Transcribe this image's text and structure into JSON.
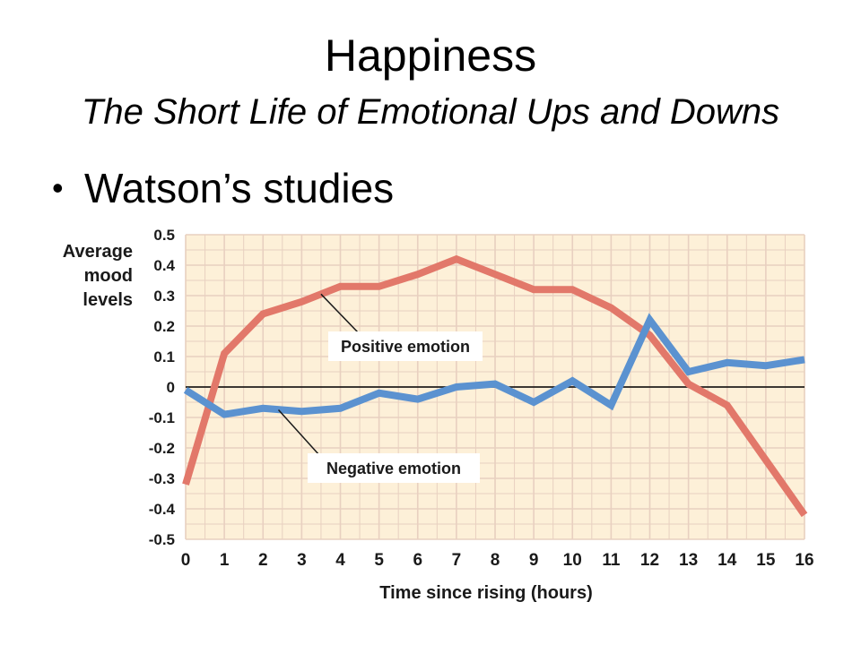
{
  "slide": {
    "title": "Happiness",
    "subtitle": "The Short Life of Emotional Ups and Downs",
    "bullet": "Watson’s studies"
  },
  "chart_data": {
    "type": "line",
    "title": "",
    "xlabel": "Time since rising (hours)",
    "ylabel": [
      "Average",
      "mood",
      "levels"
    ],
    "x": [
      0,
      1,
      2,
      3,
      4,
      5,
      6,
      7,
      8,
      9,
      10,
      11,
      12,
      13,
      14,
      15,
      16
    ],
    "xlim": [
      0,
      16
    ],
    "ylim": [
      -0.5,
      0.5
    ],
    "yticks": [
      0.5,
      0.4,
      0.3,
      0.2,
      0.1,
      0,
      -0.1,
      -0.2,
      -0.3,
      -0.4,
      -0.5
    ],
    "ytick_labels": [
      "0.5",
      "0.4",
      "0.3",
      "0.2",
      "0.1",
      "0",
      "-0.1",
      "-0.2",
      "-0.3",
      "-0.4",
      "-0.5"
    ],
    "xtick_labels": [
      "0",
      "1",
      "2",
      "3",
      "4",
      "5",
      "6",
      "7",
      "8",
      "9",
      "10",
      "11",
      "12",
      "13",
      "14",
      "15",
      "16"
    ],
    "grid": true,
    "colors": {
      "background": "#fdf0d8",
      "grid": "#e8d0c0",
      "positive": "#e2786a",
      "negative": "#5b92d0",
      "zero_line": "#000000"
    },
    "series": [
      {
        "name": "Positive emotion",
        "color": "#e2786a",
        "values": [
          -0.32,
          0.11,
          0.24,
          0.28,
          0.33,
          0.33,
          0.37,
          0.42,
          0.37,
          0.32,
          0.32,
          0.26,
          0.17,
          0.01,
          -0.06,
          -0.24,
          -0.42
        ]
      },
      {
        "name": "Negative emotion",
        "color": "#5b92d0",
        "values": [
          -0.01,
          -0.09,
          -0.07,
          -0.08,
          -0.07,
          -0.02,
          -0.04,
          0.0,
          0.01,
          -0.05,
          0.02,
          -0.06,
          0.22,
          0.05,
          0.08,
          0.07,
          0.09
        ]
      }
    ],
    "annotations": [
      {
        "text": "Positive emotion",
        "series": "Positive emotion"
      },
      {
        "text": "Negative emotion",
        "series": "Negative emotion"
      }
    ]
  }
}
